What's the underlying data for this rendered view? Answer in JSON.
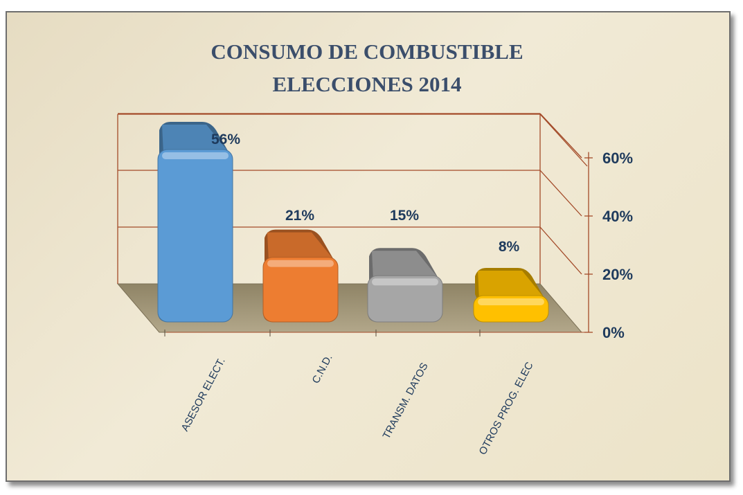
{
  "chart_data": {
    "type": "bar",
    "title": "CONSUMO DE COMBUSTIBLE",
    "subtitle": "ELECCIONES 2014",
    "categories": [
      "ASESOR ELECT.",
      "C.N.D.",
      "TRANSM. DATOS",
      "OTROS PROG. ELEC"
    ],
    "values": [
      56,
      21,
      15,
      8
    ],
    "data_labels": [
      "56%",
      "21%",
      "15%",
      "8%"
    ],
    "colors": [
      "#5b9bd5",
      "#ed7d31",
      "#a6a6a6",
      "#ffc000"
    ],
    "yticks": [
      "0%",
      "20%",
      "40%",
      "60%"
    ],
    "ylim": [
      0,
      60
    ],
    "grid": true,
    "style": "3d"
  }
}
